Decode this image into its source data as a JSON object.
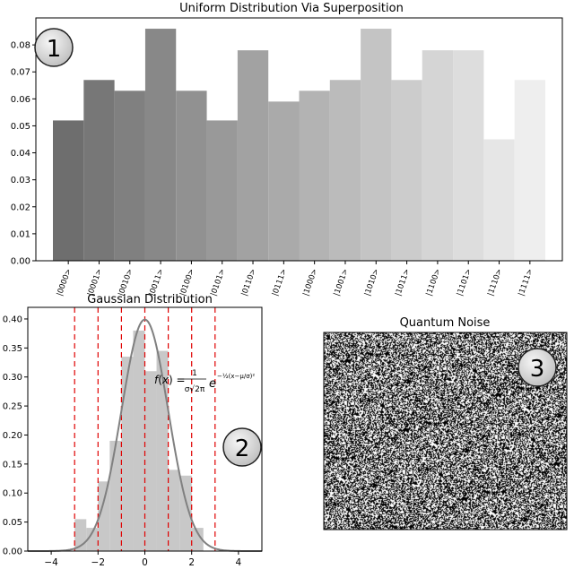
{
  "colors": {
    "axis": "#000000",
    "gauss_curve": "#808080",
    "gauss_hist": "#c8c8c8",
    "sigma_lines": "#e00000",
    "badge_fill": "#e0e0e0"
  },
  "badges": [
    "1",
    "2",
    "3"
  ],
  "chart_data": [
    {
      "type": "bar",
      "title": "Uniform Distribution Via Superposition",
      "xlabel": "",
      "ylabel": "",
      "categories": [
        "|0000>",
        "|0001>",
        "|0010>",
        "|0011>",
        "|0100>",
        "|0101>",
        "|0110>",
        "|0111>",
        "|1000>",
        "|1001>",
        "|1010>",
        "|1011>",
        "|1100>",
        "|1101>",
        "|1110>",
        "|1111>"
      ],
      "values": [
        0.052,
        0.067,
        0.063,
        0.086,
        0.063,
        0.052,
        0.078,
        0.059,
        0.063,
        0.067,
        0.086,
        0.067,
        0.078,
        0.078,
        0.045,
        0.067
      ],
      "bar_colors": [
        "#6e6e6e",
        "#777777",
        "#808080",
        "#888888",
        "#919191",
        "#999999",
        "#a2a2a2",
        "#aaaaaa",
        "#b3b3b3",
        "#bbbbbb",
        "#c4c4c4",
        "#cccccc",
        "#d5d5d5",
        "#dddddd",
        "#e6e6e6",
        "#eeeeee"
      ],
      "ylim": [
        0,
        0.09
      ],
      "yticks": [
        "0.00",
        "0.01",
        "0.02",
        "0.03",
        "0.04",
        "0.05",
        "0.06",
        "0.07",
        "0.08"
      ],
      "grid": false
    },
    {
      "type": "bar",
      "title": "Gaussian Distribution",
      "xlabel": "",
      "ylabel": "",
      "formula": "f(x) = 1/(σ√2π) e^(−½((x−μ)/σ)²)",
      "x_tick_labels": [
        "−4",
        "−2",
        "0",
        "2",
        "4"
      ],
      "xlim": [
        -5.0,
        5.0
      ],
      "ylim": [
        0,
        0.42
      ],
      "yticks": [
        "0.00",
        "0.05",
        "0.10",
        "0.15",
        "0.20",
        "0.25",
        "0.30",
        "0.35",
        "0.40"
      ],
      "histogram": {
        "bin_edges": [
          -3.0,
          -2.5,
          -2.0,
          -1.5,
          -1.0,
          -0.5,
          0.0,
          0.5,
          1.0,
          1.5,
          2.0,
          2.5,
          3.0
        ],
        "values": [
          0.055,
          0.04,
          0.12,
          0.19,
          0.335,
          0.38,
          0.31,
          0.345,
          0.14,
          0.13,
          0.04,
          0.0
        ]
      },
      "curve": {
        "mu": 0,
        "sigma": 1
      },
      "sigma_lines": [
        -3,
        -2,
        -1,
        0,
        1,
        2,
        3
      ],
      "grid": false
    },
    {
      "type": "heatmap",
      "title": "Quantum Noise",
      "colormap": "binary",
      "description": "random black and white pixels"
    }
  ]
}
